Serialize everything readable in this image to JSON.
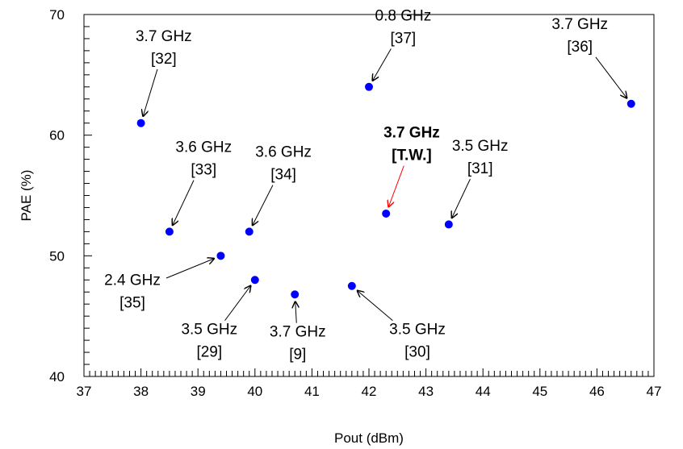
{
  "chart_data": {
    "type": "scatter",
    "xlabel": "Pout (dBm)",
    "ylabel": "PAE (%)",
    "xlim": [
      37,
      47
    ],
    "ylim": [
      40,
      70
    ],
    "x_ticks": [
      "37",
      "38",
      "39",
      "40",
      "41",
      "42",
      "43",
      "44",
      "45",
      "46",
      "47"
    ],
    "y_ticks": [
      "40",
      "50",
      "60",
      "70"
    ],
    "grid": false,
    "marker_color": "#0000ff",
    "highlight_color": "#ff0000",
    "points": [
      {
        "x": 38.0,
        "y": 61.0,
        "freq": "3.7 GHz",
        "ref": "[32]",
        "label_x": 38.4,
        "label_y": 67.8,
        "highlight": false
      },
      {
        "x": 42.0,
        "y": 64.0,
        "freq": "0.8 GHz",
        "ref": "[37]",
        "label_x": 42.6,
        "label_y": 69.5,
        "highlight": false
      },
      {
        "x": 46.6,
        "y": 62.6,
        "freq": "3.7 GHz",
        "ref": "[36]",
        "label_x": 45.7,
        "label_y": 68.8,
        "highlight": false
      },
      {
        "x": 38.5,
        "y": 52.0,
        "freq": "3.6 GHz",
        "ref": "[33]",
        "label_x": 39.1,
        "label_y": 58.6,
        "highlight": false
      },
      {
        "x": 39.9,
        "y": 52.0,
        "freq": "3.6 GHz",
        "ref": "[34]",
        "label_x": 40.5,
        "label_y": 58.2,
        "highlight": false
      },
      {
        "x": 42.3,
        "y": 53.5,
        "freq": "3.7 GHz",
        "ref": "[T.W.]",
        "label_x": 42.75,
        "label_y": 59.8,
        "highlight": true
      },
      {
        "x": 43.4,
        "y": 52.6,
        "freq": "3.5 GHz",
        "ref": "[31]",
        "label_x": 43.95,
        "label_y": 58.7,
        "highlight": false
      },
      {
        "x": 39.4,
        "y": 50.0,
        "freq": "2.4 GHz",
        "ref": "[35]",
        "label_x": 37.85,
        "label_y": 47.6,
        "highlight": false
      },
      {
        "x": 40.0,
        "y": 48.0,
        "freq": "3.5 GHz",
        "ref": "[29]",
        "label_x": 39.2,
        "label_y": 43.5,
        "highlight": false
      },
      {
        "x": 40.7,
        "y": 46.8,
        "freq": "3.7 GHz",
        "ref": "[9]",
        "label_x": 40.75,
        "label_y": 43.3,
        "highlight": false
      },
      {
        "x": 41.7,
        "y": 47.5,
        "freq": "3.5 GHz",
        "ref": "[30]",
        "label_x": 42.85,
        "label_y": 43.5,
        "highlight": false
      }
    ]
  }
}
